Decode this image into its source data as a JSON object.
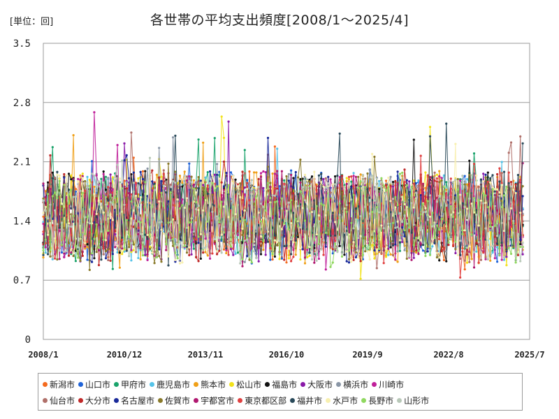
{
  "chart_data": {
    "type": "line",
    "title": "各世帯の平均支出頻度[2008/1～2025/4]",
    "unit_label": "[単位：回]",
    "ylim": [
      0,
      3.5
    ],
    "yticks": [
      "0",
      "0.7",
      "1.4",
      "2.1",
      "2.8",
      "3.5"
    ],
    "xticks": [
      {
        "label": "2008/1",
        "month_index": 0
      },
      {
        "label": "2010/12",
        "month_index": 35
      },
      {
        "label": "2013/11",
        "month_index": 70
      },
      {
        "label": "2016/10",
        "month_index": 105
      },
      {
        "label": "2019/9",
        "month_index": 140
      },
      {
        "label": "2022/8",
        "month_index": 175
      },
      {
        "label": "2025/7",
        "month_index": 210
      }
    ],
    "x_start": "2008/1",
    "x_end": "2025/4",
    "grid": true,
    "legend_position": "bottom",
    "series": [
      {
        "name": "新潟市",
        "color": "#f46a1f"
      },
      {
        "name": "山口市",
        "color": "#1f63d8"
      },
      {
        "name": "甲府市",
        "color": "#1aa36b"
      },
      {
        "name": "鹿児島市",
        "color": "#55c3e8"
      },
      {
        "name": "熊本市",
        "color": "#f0a018"
      },
      {
        "name": "松山市",
        "color": "#f2e21a"
      },
      {
        "name": "福島市",
        "color": "#111111"
      },
      {
        "name": "大阪市",
        "color": "#8a1aa8"
      },
      {
        "name": "横浜市",
        "color": "#8a96a6"
      },
      {
        "name": "川崎市",
        "color": "#c0209a"
      },
      {
        "name": "仙台市",
        "color": "#b0706a"
      },
      {
        "name": "大分市",
        "color": "#c02828"
      },
      {
        "name": "名古屋市",
        "color": "#1a2a9a"
      },
      {
        "name": "佐賀市",
        "color": "#8a7a2a"
      },
      {
        "name": "宇都宮市",
        "color": "#b01870"
      },
      {
        "name": "東京都区部",
        "color": "#e04040"
      },
      {
        "name": "福井市",
        "color": "#2a4a5a"
      },
      {
        "name": "水戸市",
        "color": "#f8f0b0"
      },
      {
        "name": "長野市",
        "color": "#90d860"
      },
      {
        "name": "山形市",
        "color": "#b8c8b8"
      }
    ]
  }
}
